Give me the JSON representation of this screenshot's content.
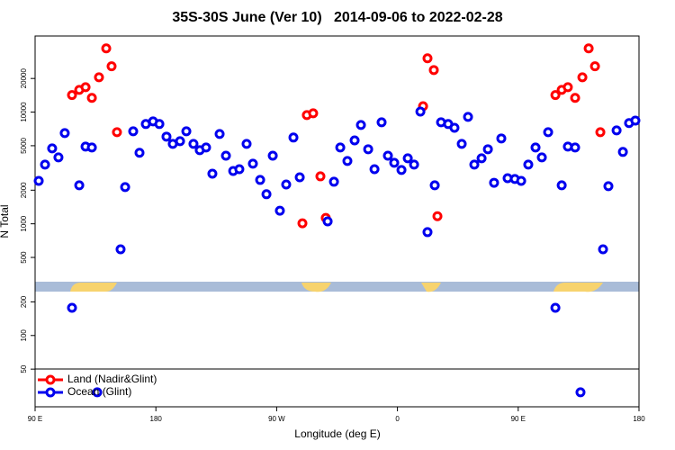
{
  "chart_data": {
    "type": "scatter",
    "title": "35S-30S June (Ver 10)   2014-09-06 to 2022-02-28",
    "x_label": "Longitude (deg E)",
    "y_label": "N Total",
    "log_y": true,
    "legend": "bottom-left",
    "xlim": [
      90,
      540
    ],
    "ylim": [
      23,
      48000
    ],
    "xticks": [
      {
        "value": 90,
        "label": "90 E"
      },
      {
        "value": 180,
        "label": "180"
      },
      {
        "value": 270,
        "label": "90 W"
      },
      {
        "value": 360,
        "label": "0"
      },
      {
        "value": 450,
        "label": "90 E"
      },
      {
        "value": 540,
        "label": "180"
      }
    ],
    "yticks": [
      50,
      100,
      200,
      500,
      1000,
      2000,
      5000,
      10000,
      20000
    ],
    "series": [
      {
        "name": "Land (Nadir&Glint)",
        "color": "#ff0000",
        "x": [
          117.5,
          122.9,
          127.6,
          132.3,
          137.6,
          143,
          147,
          151,
          289.2,
          292.5,
          297.2,
          302.6,
          306.6,
          379.1,
          382.4,
          387.1,
          389.8,
          477.7,
          482.4,
          487,
          492.4,
          497.8,
          502.5,
          507.2,
          511.2
        ],
        "values": [
          14200,
          15800,
          16700,
          13400,
          20500,
          37200,
          25700,
          6610,
          1010,
          9400,
          9750,
          2660,
          1130,
          11300,
          30300,
          23800,
          1170,
          14200,
          15800,
          16700,
          13400,
          20500,
          37200,
          25700,
          6610
        ]
      },
      {
        "name": "Ocean (Glint)",
        "color": "#0000ee",
        "x": [
          92.7,
          97.4,
          102.7,
          107.4,
          112.1,
          117.5,
          122.9,
          127.6,
          132.3,
          136.3,
          153.7,
          157.1,
          163.1,
          167.8,
          172.5,
          177.9,
          182.6,
          187.9,
          192.6,
          198,
          202.7,
          208,
          212.7,
          217.4,
          222.1,
          227.5,
          232.2,
          237.6,
          242.2,
          247.6,
          252.3,
          257.7,
          262.4,
          267.1,
          272.4,
          277.1,
          282.5,
          287.2,
          308,
          312.7,
          317.4,
          322.7,
          328.1,
          332.8,
          338.2,
          342.9,
          348.2,
          352.9,
          357.6,
          363,
          367.7,
          372.4,
          377.1,
          382.4,
          387.8,
          392.5,
          397.8,
          402.5,
          407.9,
          412.6,
          417.3,
          422.7,
          427.4,
          432,
          437.4,
          442.1,
          447.5,
          452.2,
          457.5,
          462.9,
          467.6,
          472.3,
          477.7,
          482.4,
          487,
          492.4,
          496.4,
          513.2,
          517.2,
          523.3,
          528,
          532.6,
          537.3
        ],
        "values": [
          2420,
          3390,
          4730,
          3930,
          6490,
          177,
          2210,
          4910,
          4820,
          31,
          591,
          2130,
          6730,
          4320,
          7820,
          8260,
          7820,
          6030,
          5190,
          5490,
          6730,
          5190,
          4560,
          4820,
          2810,
          6370,
          4070,
          2970,
          3080,
          5190,
          3450,
          2470,
          1840,
          4070,
          1310,
          2250,
          5920,
          2610,
          1050,
          2380,
          4820,
          3650,
          5580,
          7670,
          4650,
          3080,
          8110,
          4070,
          3520,
          3030,
          3860,
          3390,
          10100,
          842,
          2210,
          8110,
          7820,
          7240,
          5190,
          9060,
          3390,
          3860,
          4650,
          2330,
          5810,
          2560,
          2520,
          2420,
          3390,
          4820,
          3930,
          6610,
          177,
          2210,
          4910,
          4820,
          31,
          591,
          2170,
          6860,
          4400,
          7970,
          8400
        ]
      }
    ]
  }
}
